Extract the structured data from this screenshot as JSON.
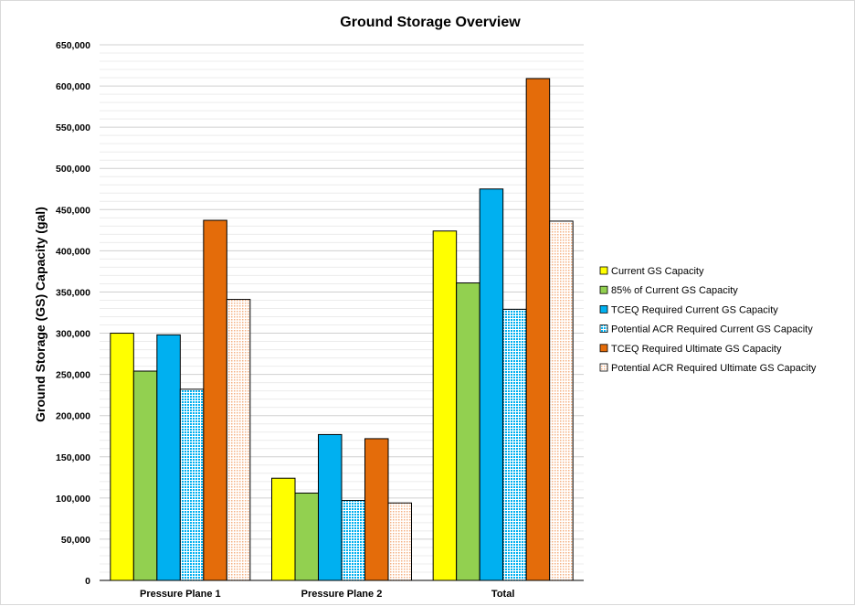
{
  "chart_data": {
    "type": "bar",
    "title": "Ground Storage Overview",
    "xlabel": "",
    "ylabel": "Ground Storage (GS) Capacity (gal)",
    "ylim": [
      0,
      650000
    ],
    "yticks": [
      0,
      50000,
      100000,
      150000,
      200000,
      250000,
      300000,
      350000,
      400000,
      450000,
      500000,
      550000,
      600000,
      650000
    ],
    "ytick_labels": [
      "0",
      "50,000",
      "100,000",
      "150,000",
      "200,000",
      "250,000",
      "300,000",
      "350,000",
      "400,000",
      "450,000",
      "500,000",
      "550,000",
      "600,000",
      "650,000"
    ],
    "grid": true,
    "legend_position": "right",
    "categories": [
      "Pressure Plane 1",
      "Pressure Plane 2",
      "Total"
    ],
    "series": [
      {
        "name": "Current GS Capacity",
        "color": "#ffff00",
        "pattern": "solid",
        "values": [
          300000,
          124000,
          424000
        ]
      },
      {
        "name": "85% of Current GS Capacity",
        "color": "#92d050",
        "pattern": "solid",
        "values": [
          254000,
          106000,
          361000
        ]
      },
      {
        "name": "TCEQ Required Current GS Capacity",
        "color": "#00b0f0",
        "pattern": "solid",
        "values": [
          298000,
          177000,
          475000
        ]
      },
      {
        "name": "Potential ACR Required Current GS Capacity",
        "color": "#00b0f0",
        "pattern": "dotted",
        "values": [
          232000,
          97000,
          329000
        ]
      },
      {
        "name": "TCEQ Required Ultimate GS Capacity",
        "color": "#e46c0a",
        "pattern": "solid",
        "values": [
          437000,
          172000,
          609000
        ]
      },
      {
        "name": "Potential ACR Required Ultimate GS Capacity",
        "color": "#f4b183",
        "pattern": "dotted",
        "values": [
          341000,
          94000,
          436000
        ]
      }
    ]
  }
}
